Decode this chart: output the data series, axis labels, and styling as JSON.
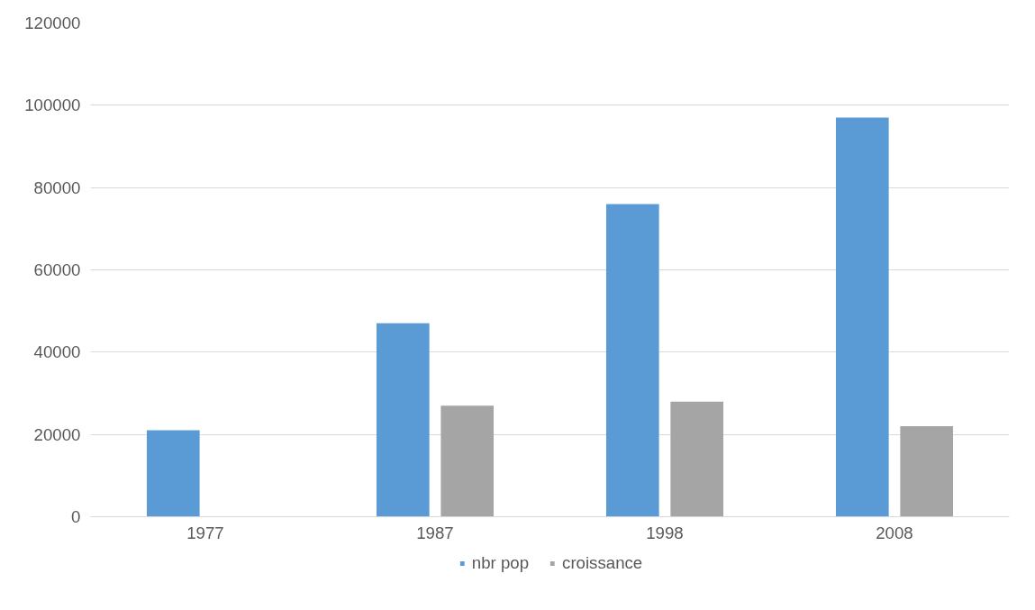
{
  "chart_data": {
    "type": "bar",
    "categories": [
      "1977",
      "1987",
      "1998",
      "2008"
    ],
    "series": [
      {
        "name": "nbr pop",
        "color": "#5b9bd5",
        "values": [
          21000,
          47000,
          76000,
          97000
        ]
      },
      {
        "name": "croissance",
        "color": "#a5a5a5",
        "values": [
          null,
          27000,
          28000,
          22000
        ]
      }
    ],
    "ylim": [
      0,
      120000
    ],
    "yticks": [
      0,
      20000,
      40000,
      60000,
      80000,
      100000,
      120000
    ],
    "grid": "y",
    "legend": "bottom"
  }
}
